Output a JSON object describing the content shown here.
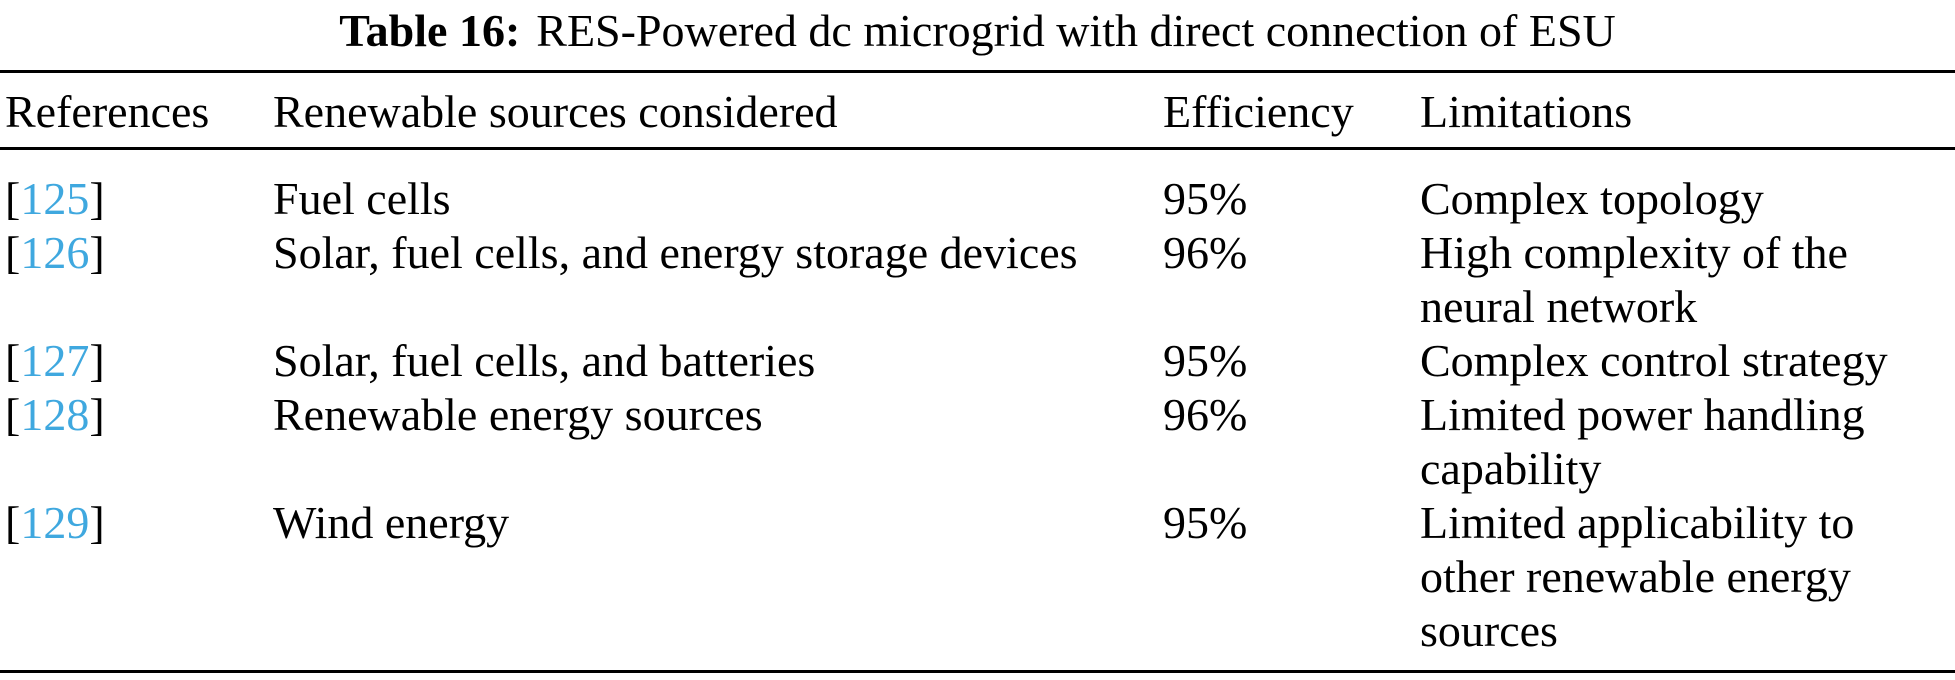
{
  "caption": {
    "label": "Table 16:",
    "title": "RES-Powered dc microgrid with direct connection of ESU"
  },
  "colors": {
    "citation_blue": "#3FA8DF",
    "text_black": "#000000",
    "rule_black": "#000000"
  },
  "table": {
    "brackets": {
      "open": "[",
      "close": "]"
    },
    "columns": [
      "References",
      "Renewable sources considered",
      "Efficiency",
      "Limitations"
    ],
    "rows": [
      {
        "ref": "125",
        "sources": "Fuel cells",
        "efficiency": "95%",
        "limitations": "Complex topology"
      },
      {
        "ref": "126",
        "sources": "Solar, fuel cells, and energy storage devices",
        "efficiency": "96%",
        "limitations": "High complexity of the\nneural network"
      },
      {
        "ref": "127",
        "sources": "Solar, fuel cells, and batteries",
        "efficiency": "95%",
        "limitations": "Complex control strategy"
      },
      {
        "ref": "128",
        "sources": "Renewable energy sources",
        "efficiency": "96%",
        "limitations": "Limited power handling\ncapability"
      },
      {
        "ref": "129",
        "sources": "Wind energy",
        "efficiency": "95%",
        "limitations": "Limited applicability to\nother renewable energy\nsources"
      }
    ]
  }
}
